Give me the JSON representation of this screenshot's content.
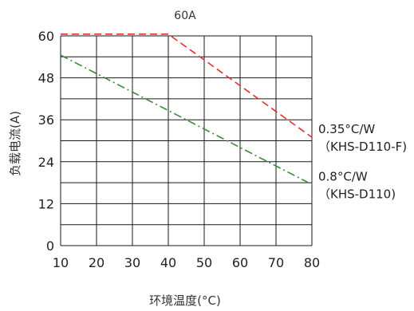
{
  "chart_data": {
    "type": "line",
    "title": "60A",
    "xlabel": "环境温度(°C)",
    "ylabel": "负载电流(A)",
    "xlim": [
      10,
      80
    ],
    "ylim": [
      0,
      60
    ],
    "x_ticks": [
      "10",
      "20",
      "30",
      "40",
      "50",
      "60",
      "70",
      "80"
    ],
    "y_ticks": [
      "0",
      "12",
      "24",
      "36",
      "48",
      "60"
    ],
    "grid": true,
    "series": [
      {
        "color": "#e0302a",
        "style": "dashed",
        "x": [
          10,
          40,
          80
        ],
        "y": [
          60.5,
          60.5,
          31
        ]
      },
      {
        "color": "#3a8a3a",
        "style": "dashdot",
        "x": [
          10,
          80
        ],
        "y": [
          54.5,
          17.5
        ]
      }
    ],
    "annotations": [
      {
        "lines": [
          "0.35°C/W",
          "（KHS-D110-F)"
        ],
        "y": 31
      },
      {
        "lines": [
          "0.8°C/W",
          "（KHS-D110)"
        ],
        "y": 17.5
      }
    ]
  }
}
